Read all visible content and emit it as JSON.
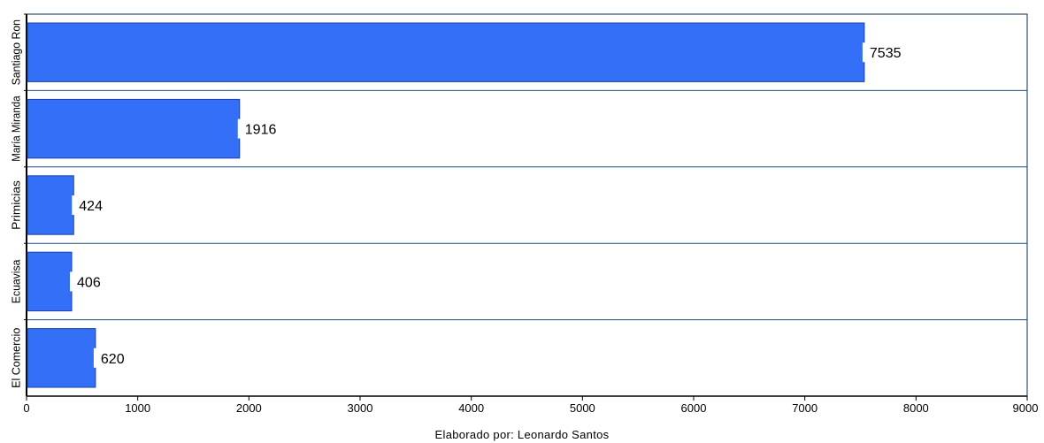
{
  "chart_data": {
    "type": "bar",
    "orientation": "horizontal",
    "categories": [
      "Santiago Ron",
      "María Miranda",
      "Primicias",
      "Ecuavisa",
      "El Comercio"
    ],
    "values": [
      7535,
      1916,
      424,
      406,
      620
    ],
    "value_labels": [
      "7535",
      "1916",
      "424",
      "406",
      "620"
    ],
    "title": "",
    "xlabel": "",
    "ylabel": "",
    "xlim": [
      0,
      9000
    ],
    "xticks": [
      "0",
      "1000",
      "2000",
      "3000",
      "4000",
      "5000",
      "6000",
      "7000",
      "8000",
      "9000"
    ],
    "grid": "horizontal separators between categories",
    "legend": "none",
    "bar_color": "#3370f7",
    "bar_edge_color": "#1e3fa8",
    "caption": "Elaborado por: Leonardo Santos"
  }
}
